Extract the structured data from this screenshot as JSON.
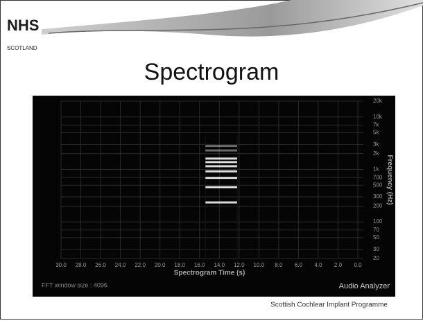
{
  "slide": {
    "logo": "NHS",
    "logo_sub": "SCOTLAND",
    "footer": "Scottish Cochlear Implant Programme"
  },
  "chart_data": {
    "type": "spectrogram",
    "title": "Spectrogram",
    "xlabel": "Spectrogram Time (s)",
    "ylabel": "Frequency (Hz)",
    "fft_label": "FFT window size : 4096",
    "watermark": "Audio Analyzer",
    "xlim": [
      30,
      0
    ],
    "ylim": [
      20,
      20000
    ],
    "log_y": true,
    "grid": true,
    "color": "#e8e8e8",
    "xticks": [
      {
        "value": 30,
        "label": "30.0"
      },
      {
        "value": 28,
        "label": "28.0"
      },
      {
        "value": 26,
        "label": "26.0"
      },
      {
        "value": 24,
        "label": "24.0"
      },
      {
        "value": 22,
        "label": "22.0"
      },
      {
        "value": 20,
        "label": "20.0"
      },
      {
        "value": 18,
        "label": "18.0"
      },
      {
        "value": 16,
        "label": "16.0"
      },
      {
        "value": 14,
        "label": "14.0"
      },
      {
        "value": 12,
        "label": "12.0"
      },
      {
        "value": 10,
        "label": "10.0"
      },
      {
        "value": 8,
        "label": "8.0"
      },
      {
        "value": 6,
        "label": "6.0"
      },
      {
        "value": 4,
        "label": "4.0"
      },
      {
        "value": 2,
        "label": "2.0"
      },
      {
        "value": 0,
        "label": "0.0"
      }
    ],
    "yticks": [
      20,
      30,
      50,
      70,
      100,
      200,
      300,
      500,
      700,
      {
        "value": 1000,
        "label": "1k"
      },
      {
        "value": 2000,
        "label": "2k"
      },
      {
        "value": 3000,
        "label": "3k"
      },
      {
        "value": 5000,
        "label": "5k"
      },
      {
        "value": 7000,
        "label": "7k"
      },
      {
        "value": 10000,
        "label": "10k"
      },
      {
        "value": 20000,
        "label": "20k"
      }
    ],
    "tone_start": 15.4,
    "tone_end": 12.2,
    "harmonics": [
      235,
      460,
      690,
      920,
      1150,
      1380,
      1610,
      2300,
      2800
    ]
  }
}
